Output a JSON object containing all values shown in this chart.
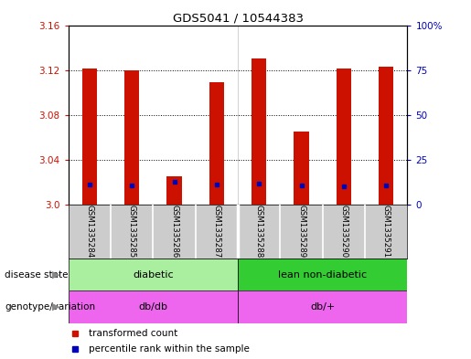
{
  "title": "GDS5041 / 10544383",
  "samples": [
    "GSM1335284",
    "GSM1335285",
    "GSM1335286",
    "GSM1335287",
    "GSM1335288",
    "GSM1335289",
    "GSM1335290",
    "GSM1335291"
  ],
  "red_bar_tops": [
    3.121,
    3.12,
    3.025,
    3.109,
    3.13,
    3.065,
    3.121,
    3.123
  ],
  "red_bar_bottom": 3.0,
  "blue_marker_values": [
    3.018,
    3.017,
    3.02,
    3.018,
    3.019,
    3.017,
    3.016,
    3.017
  ],
  "ylim": [
    3.0,
    3.16
  ],
  "yticks_left": [
    3.0,
    3.04,
    3.08,
    3.12,
    3.16
  ],
  "yticks_right_pct": [
    0,
    25,
    50,
    75,
    100
  ],
  "disease_states": [
    "diabetic",
    "lean non-diabetic"
  ],
  "disease_state_color1": "#AAEEA0",
  "disease_state_color2": "#33CC33",
  "genotype_labels": [
    "db/db",
    "db/+"
  ],
  "genotype_color": "#EE66EE",
  "legend_items": [
    "transformed count",
    "percentile rank within the sample"
  ],
  "red_color": "#CC1100",
  "blue_color": "#0000BB",
  "sample_bg": "#CCCCCC",
  "bar_width": 0.35,
  "n_group1": 4,
  "n_group2": 4
}
